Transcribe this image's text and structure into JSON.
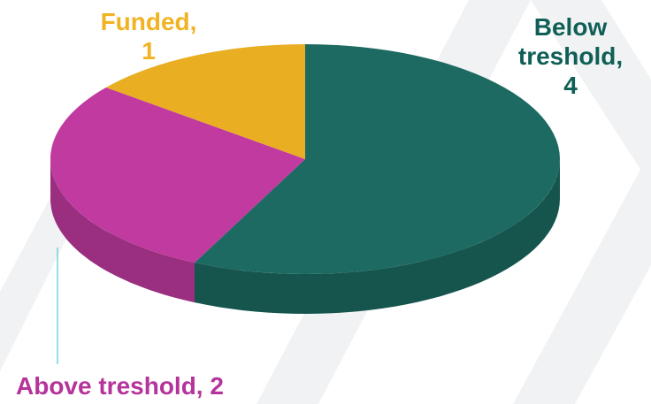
{
  "chart_data": {
    "type": "pie3d",
    "categories": [
      "Below treshold",
      "Above treshold",
      "Funded"
    ],
    "values": [
      4,
      2,
      1
    ],
    "value_labels": [
      "Below treshold, 4",
      "Above treshold, 2",
      "Funded, 1"
    ],
    "colors": [
      "#1c6a61",
      "#c03a9f",
      "#e9ae22"
    ],
    "label_colors": [
      "#0f5f56",
      "#b5339a",
      "#f0b323"
    ]
  }
}
